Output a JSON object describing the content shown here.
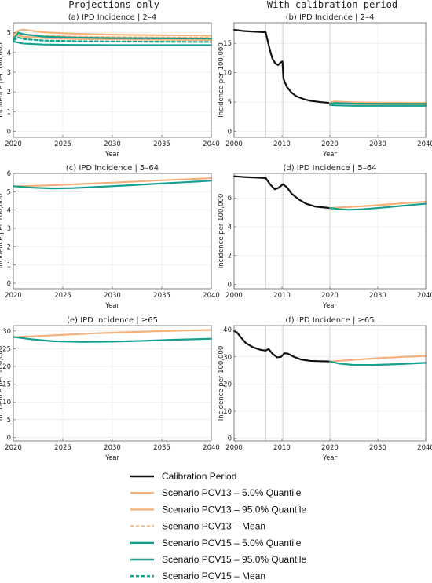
{
  "figure": {
    "column_titles": [
      "Projections only",
      "With calibration period"
    ],
    "colors": {
      "calibration": "#111111",
      "pcv13": "#f3b27c",
      "pcv15": "#16a08f",
      "vline": "#cfcfcf",
      "grid": "#e6e6e6",
      "frame": "#666666"
    }
  },
  "legend": [
    {
      "label": "Calibration Period",
      "color": "#111111",
      "dash": false
    },
    {
      "label": "Scenario PCV13 – 5.0% Quantile",
      "color": "#f3b27c",
      "dash": false
    },
    {
      "label": "Scenario PCV13 – 95.0% Quantile",
      "color": "#f3b27c",
      "dash": false
    },
    {
      "label": "Scenario PCV13 – Mean",
      "color": "#f3b27c",
      "dash": true
    },
    {
      "label": "Scenario PCV15 – 5.0% Quantile",
      "color": "#16a08f",
      "dash": false
    },
    {
      "label": "Scenario PCV15 – 95.0% Quantile",
      "color": "#16a08f",
      "dash": false
    },
    {
      "label": "Scenario PCV15 – Mean",
      "color": "#16a08f",
      "dash": true
    }
  ],
  "chart_data": [
    {
      "type": "line",
      "title": "(a) IPD Incidence | 2–4",
      "xlabel": "Year",
      "ylabel": "Incidence per 100,000",
      "xlim": [
        2020,
        2040
      ],
      "ylim": [
        -0.3,
        5.5
      ],
      "xticks": [
        2020,
        2025,
        2030,
        2035,
        2040
      ],
      "yticks": [
        0,
        1,
        2,
        3,
        4,
        5
      ],
      "vlines": [],
      "series": [
        {
          "name": "Scenario PCV13 – 95.0% Quantile",
          "color": "#f3b27c",
          "dash": false,
          "points": [
            [
              2020,
              4.9
            ],
            [
              2020.5,
              5.1
            ],
            [
              2021,
              5.15
            ],
            [
              2023,
              5.02
            ],
            [
              2026,
              4.95
            ],
            [
              2030,
              4.9
            ],
            [
              2035,
              4.87
            ],
            [
              2040,
              4.85
            ]
          ]
        },
        {
          "name": "Scenario PCV13 – Mean",
          "color": "#f3b27c",
          "dash": true,
          "points": [
            [
              2020,
              4.85
            ],
            [
              2020.5,
              4.95
            ],
            [
              2021,
              4.92
            ],
            [
              2023,
              4.85
            ],
            [
              2026,
              4.8
            ],
            [
              2030,
              4.77
            ],
            [
              2035,
              4.75
            ],
            [
              2040,
              4.74
            ]
          ]
        },
        {
          "name": "Scenario PCV13 – 5.0% Quantile",
          "color": "#f3b27c",
          "dash": false,
          "points": [
            [
              2020,
              4.8
            ],
            [
              2020.5,
              4.85
            ],
            [
              2021,
              4.8
            ],
            [
              2023,
              4.72
            ],
            [
              2026,
              4.68
            ],
            [
              2030,
              4.66
            ],
            [
              2035,
              4.64
            ],
            [
              2040,
              4.63
            ]
          ]
        },
        {
          "name": "Scenario PCV15 – 95.0% Quantile",
          "color": "#16a08f",
          "dash": false,
          "points": [
            [
              2020,
              4.65
            ],
            [
              2020.5,
              5.0
            ],
            [
              2021,
              4.92
            ],
            [
              2023,
              4.8
            ],
            [
              2026,
              4.75
            ],
            [
              2030,
              4.72
            ],
            [
              2035,
              4.71
            ],
            [
              2040,
              4.7
            ]
          ]
        },
        {
          "name": "Scenario PCV15 – Mean",
          "color": "#16a08f",
          "dash": true,
          "points": [
            [
              2020,
              4.6
            ],
            [
              2020.5,
              4.75
            ],
            [
              2021,
              4.68
            ],
            [
              2023,
              4.6
            ],
            [
              2026,
              4.57
            ],
            [
              2030,
              4.55
            ],
            [
              2035,
              4.54
            ],
            [
              2040,
              4.53
            ]
          ]
        },
        {
          "name": "Scenario PCV15 – 5.0% Quantile",
          "color": "#16a08f",
          "dash": false,
          "points": [
            [
              2020,
              4.55
            ],
            [
              2020.5,
              4.5
            ],
            [
              2021,
              4.45
            ],
            [
              2023,
              4.4
            ],
            [
              2026,
              4.38
            ],
            [
              2030,
              4.37
            ],
            [
              2035,
              4.37
            ],
            [
              2040,
              4.37
            ]
          ]
        }
      ]
    },
    {
      "type": "line",
      "title": "(b) IPD Incidence | 2–4",
      "xlabel": "Year",
      "ylabel": "Incidence per 100,000",
      "xlim": [
        2000,
        2040
      ],
      "ylim": [
        -1,
        18.5
      ],
      "xticks": [
        2000,
        2010,
        2020,
        2030,
        2040
      ],
      "yticks": [
        0,
        5,
        10,
        15
      ],
      "vlines": [
        2006.6,
        2010.2,
        2020
      ],
      "series": [
        {
          "name": "Calibration Period",
          "color": "#111111",
          "dash": false,
          "points": [
            [
              2000,
              17.3
            ],
            [
              2002,
              17.1
            ],
            [
              2004,
              17.0
            ],
            [
              2006.6,
              16.9
            ],
            [
              2007,
              15.5
            ],
            [
              2007.5,
              13.8
            ],
            [
              2008,
              12.4
            ],
            [
              2008.6,
              11.6
            ],
            [
              2009.2,
              11.3
            ],
            [
              2009.8,
              11.8
            ],
            [
              2010.1,
              11.9
            ],
            [
              2010.3,
              9.0
            ],
            [
              2011,
              7.6
            ],
            [
              2012,
              6.6
            ],
            [
              2013,
              6.0
            ],
            [
              2014.5,
              5.5
            ],
            [
              2016,
              5.2
            ],
            [
              2018,
              5.0
            ],
            [
              2020,
              4.85
            ]
          ]
        },
        {
          "name": "Scenario PCV13 – 95.0% Quantile",
          "color": "#f3b27c",
          "dash": false,
          "points": [
            [
              2020,
              4.9
            ],
            [
              2021,
              5.1
            ],
            [
              2025,
              4.97
            ],
            [
              2030,
              4.9
            ],
            [
              2040,
              4.85
            ]
          ]
        },
        {
          "name": "Scenario PCV13 – 5.0% Quantile",
          "color": "#f3b27c",
          "dash": false,
          "points": [
            [
              2020,
              4.8
            ],
            [
              2021,
              4.82
            ],
            [
              2025,
              4.7
            ],
            [
              2030,
              4.66
            ],
            [
              2040,
              4.63
            ]
          ]
        },
        {
          "name": "Scenario PCV15 – 95.0% Quantile",
          "color": "#16a08f",
          "dash": false,
          "points": [
            [
              2020,
              4.7
            ],
            [
              2021,
              4.85
            ],
            [
              2025,
              4.75
            ],
            [
              2030,
              4.72
            ],
            [
              2040,
              4.7
            ]
          ]
        },
        {
          "name": "Scenario PCV15 – 5.0% Quantile",
          "color": "#16a08f",
          "dash": false,
          "points": [
            [
              2020,
              4.5
            ],
            [
              2021,
              4.45
            ],
            [
              2025,
              4.38
            ],
            [
              2030,
              4.37
            ],
            [
              2040,
              4.37
            ]
          ]
        }
      ]
    },
    {
      "type": "line",
      "title": "(c) IPD Incidence | 5–64",
      "xlabel": "Year",
      "ylabel": "Incidence per 100,000",
      "xlim": [
        2020,
        2040
      ],
      "ylim": [
        -0.3,
        6.0
      ],
      "xticks": [
        2020,
        2025,
        2030,
        2035,
        2040
      ],
      "yticks": [
        0,
        1,
        2,
        3,
        4,
        5,
        6
      ],
      "vlines": [],
      "series": [
        {
          "name": "Scenario PCV13 – 95.0% Quantile",
          "color": "#f3b27c",
          "dash": false,
          "points": [
            [
              2020,
              5.3
            ],
            [
              2022,
              5.32
            ],
            [
              2025,
              5.38
            ],
            [
              2028,
              5.45
            ],
            [
              2031,
              5.52
            ],
            [
              2034,
              5.6
            ],
            [
              2037,
              5.67
            ],
            [
              2040,
              5.74
            ]
          ]
        },
        {
          "name": "Scenario PCV15 – 5.0% Quantile",
          "color": "#16a08f",
          "dash": false,
          "points": [
            [
              2020,
              5.3
            ],
            [
              2022,
              5.22
            ],
            [
              2024,
              5.18
            ],
            [
              2026,
              5.2
            ],
            [
              2028,
              5.25
            ],
            [
              2031,
              5.33
            ],
            [
              2034,
              5.42
            ],
            [
              2037,
              5.51
            ],
            [
              2040,
              5.6
            ]
          ]
        }
      ]
    },
    {
      "type": "line",
      "title": "(d) IPD Incidence | 5–64",
      "xlabel": "Year",
      "ylabel": "Incidence per 100,000",
      "xlim": [
        2000,
        2040
      ],
      "ylim": [
        -0.3,
        7.7
      ],
      "xticks": [
        2000,
        2010,
        2020,
        2030,
        2040
      ],
      "yticks": [
        0,
        2,
        4,
        6
      ],
      "vlines": [
        2006.6,
        2010.2,
        2020
      ],
      "series": [
        {
          "name": "Calibration Period",
          "color": "#111111",
          "dash": false,
          "points": [
            [
              2000,
              7.5
            ],
            [
              2002,
              7.45
            ],
            [
              2004,
              7.42
            ],
            [
              2006.6,
              7.38
            ],
            [
              2007.5,
              6.95
            ],
            [
              2008.5,
              6.6
            ],
            [
              2009.3,
              6.7
            ],
            [
              2010.2,
              6.95
            ],
            [
              2011,
              6.75
            ],
            [
              2012,
              6.3
            ],
            [
              2013.5,
              5.9
            ],
            [
              2015,
              5.6
            ],
            [
              2017,
              5.4
            ],
            [
              2020,
              5.3
            ]
          ]
        },
        {
          "name": "Scenario PCV13 – 95.0% Quantile",
          "color": "#f3b27c",
          "dash": false,
          "points": [
            [
              2020,
              5.3
            ],
            [
              2024,
              5.38
            ],
            [
              2028,
              5.45
            ],
            [
              2032,
              5.55
            ],
            [
              2036,
              5.65
            ],
            [
              2040,
              5.74
            ]
          ]
        },
        {
          "name": "Scenario PCV15 – 5.0% Quantile",
          "color": "#16a08f",
          "dash": false,
          "points": [
            [
              2020,
              5.3
            ],
            [
              2022,
              5.22
            ],
            [
              2024,
              5.18
            ],
            [
              2027,
              5.22
            ],
            [
              2031,
              5.33
            ],
            [
              2035,
              5.45
            ],
            [
              2040,
              5.6
            ]
          ]
        }
      ]
    },
    {
      "type": "line",
      "title": "(e) IPD Incidence | ≥65",
      "xlabel": "Year",
      "ylabel": "Incidence per 100,000",
      "xlim": [
        2020,
        2040
      ],
      "ylim": [
        -1,
        31.5
      ],
      "xticks": [
        2020,
        2025,
        2030,
        2035,
        2040
      ],
      "yticks": [
        0,
        5,
        10,
        15,
        20,
        25,
        30
      ],
      "vlines": [],
      "series": [
        {
          "name": "Scenario PCV13 – 95.0% Quantile",
          "color": "#f3b27c",
          "dash": false,
          "points": [
            [
              2020,
              28.3
            ],
            [
              2022,
              28.5
            ],
            [
              2025,
              28.9
            ],
            [
              2028,
              29.3
            ],
            [
              2031,
              29.6
            ],
            [
              2034,
              29.9
            ],
            [
              2037,
              30.1
            ],
            [
              2040,
              30.3
            ]
          ]
        },
        {
          "name": "Scenario PCV15 – 5.0% Quantile",
          "color": "#16a08f",
          "dash": false,
          "points": [
            [
              2020,
              28.3
            ],
            [
              2022,
              27.6
            ],
            [
              2024,
              27.1
            ],
            [
              2027,
              26.9
            ],
            [
              2030,
              27.0
            ],
            [
              2033,
              27.2
            ],
            [
              2036,
              27.5
            ],
            [
              2040,
              27.8
            ]
          ]
        }
      ]
    },
    {
      "type": "line",
      "title": "(f) IPD Incidence | ≥65",
      "xlabel": "Year",
      "ylabel": "Incidence per 100,000",
      "xlim": [
        2000,
        2040
      ],
      "ylim": [
        -1,
        41.5
      ],
      "xticks": [
        2000,
        2010,
        2020,
        2030,
        2040
      ],
      "yticks": [
        0,
        10,
        20,
        30,
        40
      ],
      "vlines": [
        2006.6,
        2010.2,
        2020
      ],
      "series": [
        {
          "name": "Calibration Period",
          "color": "#111111",
          "dash": false,
          "points": [
            [
              2000,
              39.5
            ],
            [
              2000.6,
              39.0
            ],
            [
              2001.5,
              37.0
            ],
            [
              2002.5,
              35.0
            ],
            [
              2004,
              33.5
            ],
            [
              2005.5,
              32.6
            ],
            [
              2006.6,
              32.3
            ],
            [
              2007.2,
              32.9
            ],
            [
              2008,
              31.2
            ],
            [
              2009,
              29.8
            ],
            [
              2009.8,
              30.0
            ],
            [
              2010.5,
              31.3
            ],
            [
              2011.2,
              31.2
            ],
            [
              2012.5,
              30.0
            ],
            [
              2014,
              29.0
            ],
            [
              2016,
              28.5
            ],
            [
              2018,
              28.4
            ],
            [
              2020,
              28.3
            ]
          ]
        },
        {
          "name": "Scenario PCV13 – 95.0% Quantile",
          "color": "#f3b27c",
          "dash": false,
          "points": [
            [
              2020,
              28.3
            ],
            [
              2025,
              28.9
            ],
            [
              2030,
              29.5
            ],
            [
              2035,
              30.0
            ],
            [
              2040,
              30.3
            ]
          ]
        },
        {
          "name": "Scenario PCV15 – 5.0% Quantile",
          "color": "#16a08f",
          "dash": false,
          "points": [
            [
              2020,
              28.3
            ],
            [
              2022,
              27.5
            ],
            [
              2025,
              27.0
            ],
            [
              2029,
              27.0
            ],
            [
              2034,
              27.3
            ],
            [
              2040,
              27.8
            ]
          ]
        }
      ]
    }
  ]
}
